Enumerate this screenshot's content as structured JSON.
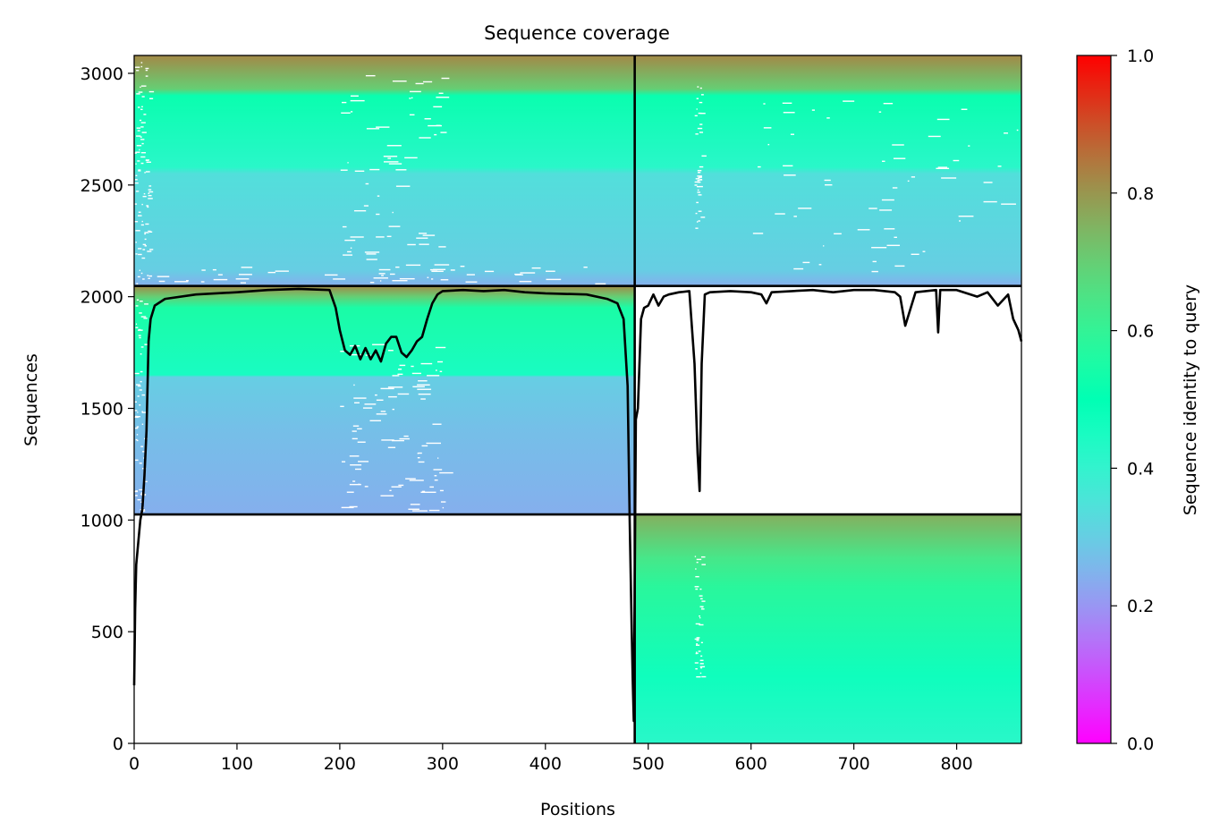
{
  "chart_data": {
    "type": "heatmap",
    "title": "Sequence coverage",
    "xlabel": "Positions",
    "ylabel": "Sequences",
    "xlim": [
      0,
      863
    ],
    "ylim": [
      0,
      3080
    ],
    "x_ticks": [
      0,
      100,
      200,
      300,
      400,
      500,
      600,
      700,
      800
    ],
    "y_ticks": [
      0,
      500,
      1000,
      1500,
      2000,
      2500,
      3000
    ],
    "grid": false,
    "colorbar": {
      "label": "Sequence identity to query",
      "range": [
        0,
        1
      ],
      "ticks": [
        "0.0",
        "0.2",
        "0.4",
        "0.6",
        "0.8",
        "1.0"
      ],
      "colormap": "rainbow"
    },
    "chain_boundary_x": 486,
    "msa_blocks": [
      {
        "name": "paired",
        "x": [
          0,
          863
        ],
        "y": [
          2048,
          3080
        ],
        "identity_stops": [
          [
            2048,
            0.24
          ],
          [
            2120,
            0.3
          ],
          [
            2550,
            0.34
          ],
          [
            2580,
            0.42
          ],
          [
            2900,
            0.52
          ],
          [
            2930,
            0.7
          ],
          [
            3080,
            0.82
          ]
        ]
      },
      {
        "name": "chain-A-unpaired",
        "x": [
          0,
          486
        ],
        "y": [
          1025,
          2048
        ],
        "identity_stops": [
          [
            1025,
            0.24
          ],
          [
            1400,
            0.27
          ],
          [
            1640,
            0.3
          ],
          [
            1650,
            0.45
          ],
          [
            1950,
            0.55
          ],
          [
            2000,
            0.7
          ],
          [
            2048,
            0.82
          ]
        ]
      },
      {
        "name": "chain-B-unpaired",
        "x": [
          486,
          863
        ],
        "y": [
          0,
          1025
        ],
        "identity_stops": [
          [
            0,
            0.42
          ],
          [
            300,
            0.47
          ],
          [
            700,
            0.58
          ],
          [
            830,
            0.64
          ],
          [
            1025,
            0.76
          ]
        ]
      }
    ],
    "block_boundaries_y": [
      1025,
      2048
    ],
    "coverage_line": {
      "x": [
        0,
        1,
        2,
        4,
        6,
        8,
        10,
        12,
        14,
        16,
        20,
        30,
        60,
        100,
        130,
        160,
        190,
        196,
        200,
        205,
        210,
        215,
        220,
        225,
        230,
        235,
        240,
        245,
        250,
        255,
        260,
        265,
        270,
        275,
        280,
        285,
        290,
        295,
        300,
        320,
        340,
        360,
        380,
        400,
        440,
        460,
        470,
        476,
        480,
        482,
        484,
        485,
        486,
        488,
        490,
        493,
        496,
        500,
        505,
        510,
        515,
        520,
        530,
        540,
        545,
        548,
        550,
        552,
        555,
        560,
        580,
        600,
        610,
        615,
        620,
        640,
        660,
        680,
        700,
        720,
        740,
        745,
        750,
        760,
        780,
        782,
        784,
        800,
        820,
        830,
        840,
        850,
        855,
        860,
        863
      ],
      "y": [
        260,
        600,
        800,
        900,
        1000,
        1050,
        1200,
        1400,
        1800,
        1900,
        1960,
        1990,
        2010,
        2020,
        2030,
        2035,
        2030,
        1950,
        1850,
        1760,
        1740,
        1780,
        1720,
        1770,
        1720,
        1760,
        1710,
        1790,
        1820,
        1820,
        1750,
        1730,
        1760,
        1800,
        1820,
        1900,
        1970,
        2010,
        2025,
        2030,
        2025,
        2030,
        2020,
        2015,
        2010,
        1990,
        1970,
        1900,
        1600,
        1000,
        500,
        270,
        100,
        1450,
        1500,
        1900,
        1950,
        1960,
        2010,
        1960,
        2000,
        2010,
        2020,
        2025,
        1700,
        1300,
        1130,
        1700,
        2010,
        2020,
        2025,
        2020,
        2010,
        1970,
        2020,
        2025,
        2030,
        2020,
        2030,
        2030,
        2020,
        2000,
        1870,
        2020,
        2030,
        1840,
        2030,
        2030,
        2000,
        2020,
        1960,
        2010,
        1900,
        1850,
        1800
      ]
    }
  }
}
